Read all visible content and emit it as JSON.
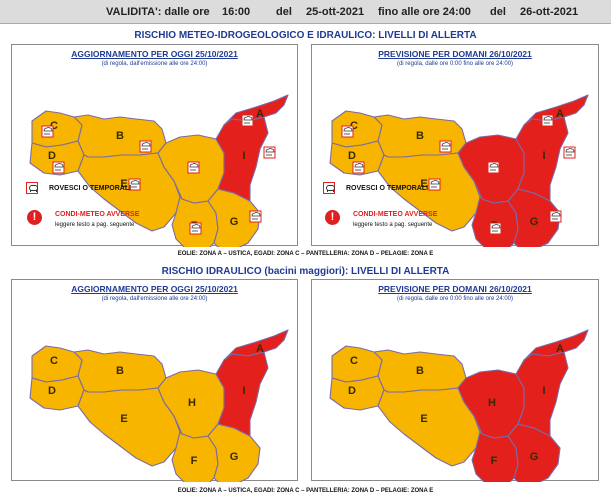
{
  "validity": {
    "label": "VALIDITA': dalle ore",
    "from_time": "16:00",
    "del1": "del",
    "from_date": "25-ott-2021",
    "until": "fino alle ore 24:00",
    "del2": "del",
    "to_date": "26-ott-2021"
  },
  "section1": {
    "title": "RISCHIO METEO-IDROGEOLOGICO E IDRAULICO: LIVELLI DI ALLERTA",
    "left": {
      "header": "AGGIORNAMENTO PER OGGI 25/10/2021",
      "sub": "(di regola, dall'emissione alle ore 24:00)"
    },
    "right": {
      "header": "PREVISIONE PER DOMANI 26/10/2021",
      "sub": "(di regola, dalle ore 0:00 fino alle ore 24:00)"
    },
    "legend_storms": "ROVESCI O TEMPORALI",
    "legend_adverse": "CONDI-METEO AVVERSE",
    "legend_adverse_sub": "leggere testo a pag. seguente",
    "alert_symbol": "!",
    "zones_note": "EOLIE: ZONA A – USTICA, EGADI: ZONA C – PANTELLERIA: ZONA D – PELAGIE: ZONA E"
  },
  "section2": {
    "title": "RISCHIO IDRAULICO (bacini maggiori): LIVELLI DI ALLERTA",
    "left": {
      "header": "AGGIORNAMENTO PER OGGI 25/10/2021",
      "sub": "(di regola, dall'emissione alle ore 24:00)"
    },
    "right": {
      "header": "PREVISIONE PER DOMANI 26/10/2021",
      "sub": "(di regola, dalle ore 0:00 fino alle ore 24:00)"
    },
    "zones_note": "EOLIE: ZONA A – USTICA, EGADI: ZONA C – PANTELLERIA: ZONA D – PELAGIE: ZONA E"
  },
  "zone_labels": [
    "A",
    "B",
    "C",
    "D",
    "E",
    "F",
    "G",
    "H",
    "I"
  ],
  "maps": {
    "s1_left_red": [
      "A",
      "I"
    ],
    "s1_right_red": [
      "A",
      "I",
      "H",
      "G",
      "F"
    ],
    "s2_left_red": [
      "A",
      "I"
    ],
    "s2_right_red": [
      "A",
      "I",
      "H",
      "G",
      "F"
    ]
  },
  "colors": {
    "yellow": "#f7b500",
    "red": "#e3201b",
    "title_blue": "#1f3a93",
    "border": "#7b6aa8"
  }
}
